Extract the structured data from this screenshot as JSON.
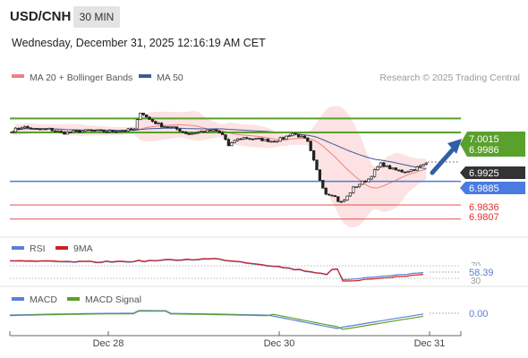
{
  "header": {
    "symbol": "USD/CNH",
    "timeframe": "30 MIN",
    "datetime": "Wednesday, December 31, 2025 12:16:19 AM CET"
  },
  "legend": {
    "items": [
      {
        "label": "MA 20 + Bollinger Bands",
        "color": "#f08080"
      },
      {
        "label": "MA 50",
        "color": "#3a5a9a"
      }
    ],
    "credit": "Research © 2025 Trading Central"
  },
  "chart_data": [
    {
      "type": "candlestick",
      "panel": "price",
      "ylim": [
        6.9775,
        7.0075
      ],
      "x": [
        "Dec 28",
        "Dec 30",
        "Dec 31"
      ],
      "x_ticks": [
        "Dec 28",
        "Dec 30",
        "Dec 31"
      ],
      "series": [
        {
          "name": "MA 20 + Bollinger Bands",
          "kind": "bands",
          "color": "#f08080"
        },
        {
          "name": "MA 50",
          "kind": "line",
          "color": "#3a5a9a"
        }
      ],
      "levels": [
        {
          "value": "7.0015",
          "kind": "resistance",
          "color": "#5aa02c"
        },
        {
          "value": "6.9986",
          "kind": "resistance",
          "color": "#5aa02c"
        },
        {
          "value": "6.9925",
          "kind": "last",
          "color": "#333333"
        },
        {
          "value": "6.9885",
          "kind": "pivot",
          "color": "#4a7be0"
        },
        {
          "value": "6.9836",
          "kind": "support",
          "color": "#e05050"
        },
        {
          "value": "6.9807",
          "kind": "support",
          "color": "#e05050"
        }
      ],
      "projection": {
        "from": 6.9925,
        "to": 7.0015,
        "color": "#2f5fa5"
      }
    },
    {
      "type": "line",
      "panel": "rsi",
      "series": [
        {
          "name": "RSI",
          "color": "#5b7fd6"
        },
        {
          "name": "9MA",
          "color": "#cc2222"
        }
      ],
      "levels": [
        "70",
        "30"
      ],
      "last_value": "58.39"
    },
    {
      "type": "line",
      "panel": "macd",
      "series": [
        {
          "name": "MACD",
          "color": "#5b7fd6"
        },
        {
          "name": "MACD Signal",
          "color": "#5aa02c"
        }
      ],
      "last_value": "0.00"
    }
  ]
}
